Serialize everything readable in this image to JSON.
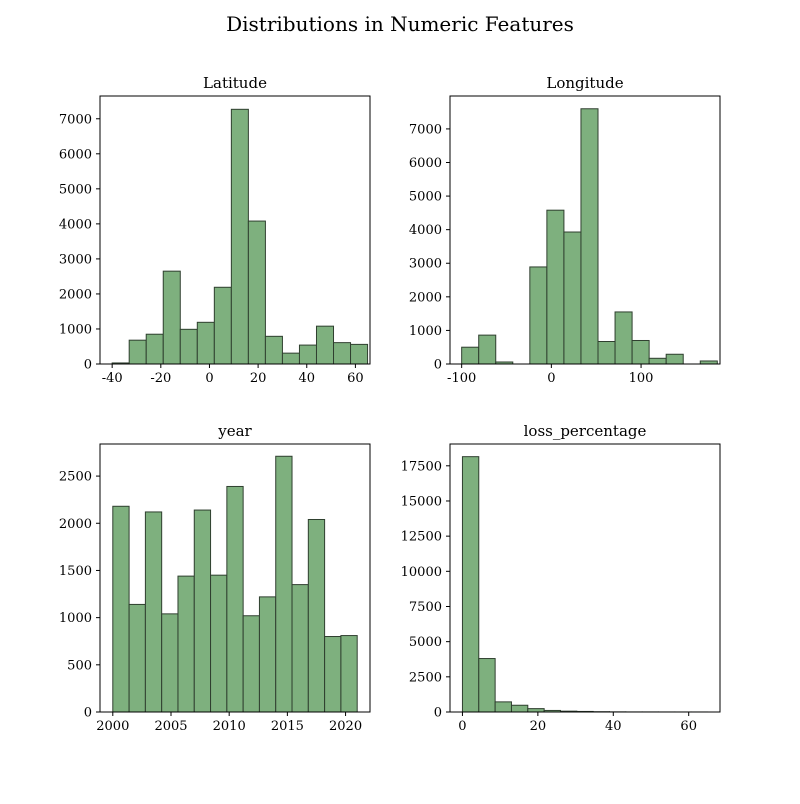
{
  "figure": {
    "title": "Distributions in Numeric Features"
  },
  "chart_data": [
    {
      "type": "bar",
      "title": "Latitude",
      "xlabel": "",
      "ylabel": "",
      "bar_color": "#7eb07e",
      "edge_color": "#2f3f2f",
      "xlim": [
        -45,
        66
      ],
      "ylim": [
        0,
        7650
      ],
      "xticks": [
        -40,
        -20,
        0,
        20,
        40,
        60
      ],
      "yticks": [
        0,
        1000,
        2000,
        3000,
        4000,
        5000,
        6000,
        7000
      ],
      "bins": [
        [
          -40,
          -33
        ],
        [
          -33,
          -26
        ],
        [
          -26,
          -19
        ],
        [
          -19,
          -12
        ],
        [
          -12,
          -5
        ],
        [
          -5,
          2
        ],
        [
          2,
          9
        ],
        [
          9,
          16
        ],
        [
          16,
          23
        ],
        [
          23,
          30
        ],
        [
          30,
          37
        ],
        [
          37,
          44
        ],
        [
          44,
          51
        ],
        [
          51,
          58
        ],
        [
          58,
          65
        ]
      ],
      "values": [
        30,
        680,
        850,
        2650,
        990,
        1190,
        2190,
        7270,
        4080,
        790,
        310,
        540,
        1080,
        610,
        560
      ]
    },
    {
      "type": "bar",
      "title": "Longitude",
      "xlabel": "",
      "ylabel": "",
      "bar_color": "#7eb07e",
      "edge_color": "#2f3f2f",
      "xlim": [
        -113,
        188
      ],
      "ylim": [
        0,
        7980
      ],
      "xticks": [
        -100,
        0,
        100
      ],
      "yticks": [
        0,
        1000,
        2000,
        3000,
        4000,
        5000,
        6000,
        7000
      ],
      "bins": [
        [
          -100,
          -81
        ],
        [
          -81,
          -62
        ],
        [
          -62,
          -43
        ],
        [
          -43,
          -24
        ],
        [
          -24,
          -5
        ],
        [
          -5,
          14
        ],
        [
          14,
          33
        ],
        [
          33,
          52
        ],
        [
          52,
          71
        ],
        [
          71,
          90
        ],
        [
          90,
          109
        ],
        [
          109,
          128
        ],
        [
          128,
          147
        ],
        [
          147,
          166
        ],
        [
          166,
          185
        ]
      ],
      "values": [
        500,
        860,
        60,
        0,
        2890,
        4580,
        3930,
        7600,
        670,
        1550,
        700,
        170,
        290,
        0,
        90
      ]
    },
    {
      "type": "bar",
      "title": "year",
      "xlabel": "",
      "ylabel": "",
      "bar_color": "#7eb07e",
      "edge_color": "#2f3f2f",
      "xlim": [
        1998.9,
        2022.1
      ],
      "ylim": [
        0,
        2840
      ],
      "xticks": [
        2000,
        2005,
        2010,
        2015,
        2020
      ],
      "yticks": [
        0,
        500,
        1000,
        1500,
        2000,
        2500
      ],
      "bins": [
        [
          2000,
          2001.4
        ],
        [
          2001.4,
          2002.8
        ],
        [
          2002.8,
          2004.2
        ],
        [
          2004.2,
          2005.6
        ],
        [
          2005.6,
          2007
        ],
        [
          2007,
          2008.4
        ],
        [
          2008.4,
          2009.8
        ],
        [
          2009.8,
          2011.2
        ],
        [
          2011.2,
          2012.6
        ],
        [
          2012.6,
          2014
        ],
        [
          2014,
          2015.4
        ],
        [
          2015.4,
          2016.8
        ],
        [
          2016.8,
          2018.2
        ],
        [
          2018.2,
          2019.6
        ],
        [
          2019.6,
          2021
        ]
      ],
      "values": [
        2180,
        1140,
        2120,
        1040,
        1440,
        2140,
        1450,
        2390,
        1020,
        1220,
        2710,
        1350,
        2040,
        800,
        810
      ]
    },
    {
      "type": "bar",
      "title": "loss_percentage",
      "xlabel": "",
      "ylabel": "",
      "bar_color": "#7eb07e",
      "edge_color": "#2f3f2f",
      "xlim": [
        -3.3,
        68.3
      ],
      "ylim": [
        0,
        19050
      ],
      "xticks": [
        0,
        20,
        40,
        60
      ],
      "yticks": [
        0,
        2500,
        5000,
        7500,
        10000,
        12500,
        15000,
        17500
      ],
      "bins": [
        [
          0,
          4.33
        ],
        [
          4.33,
          8.67
        ],
        [
          8.67,
          13
        ],
        [
          13,
          17.33
        ],
        [
          17.33,
          21.67
        ],
        [
          21.67,
          26
        ],
        [
          26,
          30.33
        ],
        [
          30.33,
          34.67
        ],
        [
          34.67,
          39
        ],
        [
          39,
          43.33
        ],
        [
          43.33,
          47.67
        ],
        [
          47.67,
          52
        ],
        [
          52,
          56.33
        ],
        [
          56.33,
          60.67
        ],
        [
          60.67,
          65
        ]
      ],
      "values": [
        18150,
        3800,
        720,
        480,
        240,
        110,
        60,
        40,
        20,
        10,
        5,
        5,
        3,
        2,
        2
      ]
    }
  ]
}
